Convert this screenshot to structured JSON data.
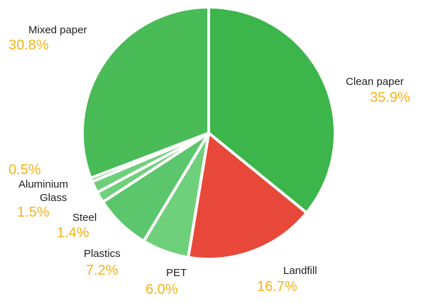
{
  "chart_data": {
    "type": "pie",
    "title": "",
    "start": "top",
    "direction": "clockwise",
    "slices": [
      {
        "label": "Clean paper",
        "value_label": "35.9%",
        "value": 35.9,
        "color": "#3cb54a"
      },
      {
        "label": "Landfill",
        "value_label": "16.7%",
        "value": 16.7,
        "color": "#e8483a"
      },
      {
        "label": "PET",
        "value_label": "6.0%",
        "value": 6.0,
        "color": "#6fd07b"
      },
      {
        "label": "Plastics",
        "value_label": "7.2%",
        "value": 7.2,
        "color": "#5bc66b"
      },
      {
        "label": "Steel",
        "value_label": "1.4%",
        "value": 1.4,
        "color": "#6fd07b"
      },
      {
        "label": "Glass",
        "value_label": "1.5%",
        "value": 1.5,
        "color": "#6fd07b"
      },
      {
        "label": "Aluminium",
        "value_label": "0.5%",
        "value": 0.5,
        "color": "#6fd07b"
      },
      {
        "label": "Mixed paper",
        "value_label": "30.8%",
        "value": 30.8,
        "color": "#49bb57"
      }
    ],
    "legend": "none"
  }
}
